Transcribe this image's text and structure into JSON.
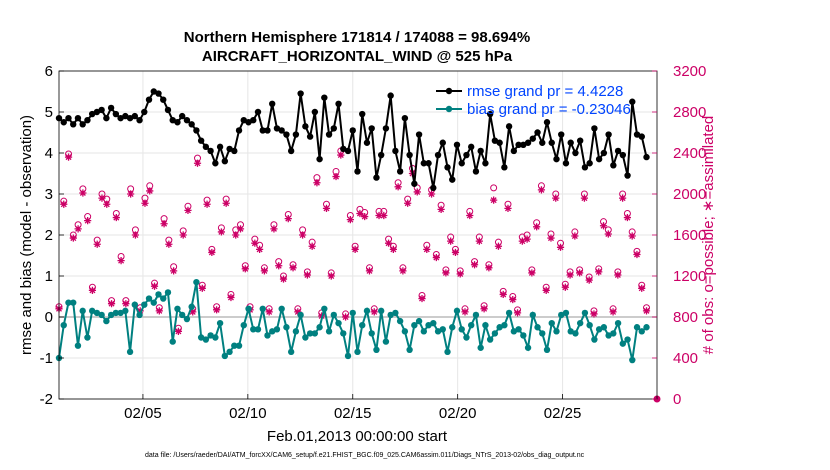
{
  "chart_data": {
    "type": "line",
    "title_line1": "Northern Hemisphere 171814 / 174088 = 98.694%",
    "title_line2": "AIRCRAFT_HORIZONTAL_WIND @ 525 hPa",
    "xlabel": "Feb.01,2013 00:00:00 start",
    "ylabel_left": "rmse and bias (model - observation)",
    "ylabel_right": "# of obs: o=possible; ∗=assimilated",
    "footnote": "data file: /Users/raeder/DAI/ATM_forcXX/CAM6_setup/f.e21.FHIST_BGC.f09_025.CAM6assim.011/Diags_NTrS_2013-02/obs_diag_output.nc",
    "xlim": [
      1,
      29.5
    ],
    "ylim_left": [
      -2,
      6
    ],
    "ylim_right": [
      0,
      3200
    ],
    "x_ticks": [
      5,
      10,
      15,
      20,
      25
    ],
    "x_tick_labels": [
      "02/05",
      "02/10",
      "02/15",
      "02/20",
      "02/25"
    ],
    "y_left_ticks": [
      "-2",
      "-1",
      "0",
      "1",
      "2",
      "3",
      "4",
      "5",
      "6"
    ],
    "y_right_ticks": [
      "0",
      "400",
      "800",
      "1200",
      "1600",
      "2000",
      "2400",
      "2800",
      "3200"
    ],
    "colors": {
      "rmse": "#000000",
      "bias": "#008080",
      "obs": "#cc0066",
      "zero": "#bbbbbb",
      "grid": "#e6e6e6",
      "legend_text": "#0044ff"
    },
    "legend": [
      {
        "label": "rmse grand pr = 4.4228",
        "series": "rmse"
      },
      {
        "label": "bias grand pr = -0.23046",
        "series": "bias"
      }
    ],
    "series": [
      {
        "name": "rmse",
        "axis": "left",
        "values": [
          4.85,
          4.75,
          4.85,
          4.7,
          4.85,
          4.7,
          4.8,
          4.95,
          5.0,
          5.05,
          4.85,
          5.1,
          4.95,
          4.85,
          4.9,
          4.85,
          4.9,
          4.8,
          5.0,
          5.3,
          5.5,
          5.45,
          5.3,
          5.05,
          4.8,
          4.75,
          4.9,
          4.8,
          4.7,
          4.55,
          4.3,
          4.15,
          4.05,
          3.75,
          4.15,
          3.8,
          4.1,
          4.05,
          4.55,
          4.8,
          4.75,
          4.8,
          5.0,
          4.55,
          4.55,
          5.2,
          4.6,
          4.55,
          4.45,
          4.05,
          4.45,
          5.45,
          4.65,
          4.4,
          5.0,
          3.85,
          5.35,
          4.45,
          4.6,
          5.2,
          4.1,
          4.05,
          4.55,
          3.55,
          4.95,
          4.25,
          4.6,
          3.4,
          3.95,
          4.6,
          5.4,
          4.05,
          3.55,
          4.85,
          3.95,
          3.25,
          4.45,
          3.75,
          3.75,
          3.15,
          3.95,
          4.25,
          3.65,
          3.35,
          4.2,
          3.75,
          3.95,
          4.15,
          3.55,
          4.05,
          3.75,
          4.95,
          4.3,
          4.25,
          3.65,
          4.65,
          4.05,
          4.2,
          4.2,
          4.25,
          4.35,
          4.5,
          4.25,
          4.75,
          4.25,
          3.85,
          4.45,
          3.75,
          4.25,
          4.0,
          4.3,
          3.65,
          3.75,
          4.6,
          3.85,
          4.0,
          4.45,
          3.7,
          4.05,
          3.95,
          3.45,
          5.25,
          4.45,
          4.4,
          3.9
        ]
      },
      {
        "name": "bias",
        "axis": "left",
        "values": [
          -1.0,
          -0.2,
          0.35,
          0.35,
          -0.7,
          0.15,
          -0.5,
          0.15,
          0.1,
          0.05,
          -0.1,
          0.05,
          0.1,
          0.1,
          0.15,
          -0.85,
          0.3,
          0.05,
          0.3,
          0.45,
          0.35,
          0.55,
          0.45,
          0.6,
          -0.6,
          0.2,
          0.05,
          -0.05,
          0.25,
          0.85,
          -0.5,
          -0.55,
          -0.45,
          -0.5,
          -0.15,
          -0.95,
          -0.85,
          -0.7,
          -0.7,
          -0.2,
          0.2,
          -0.3,
          -0.3,
          0.2,
          -0.45,
          -0.35,
          -0.3,
          0.2,
          -0.25,
          -0.85,
          -0.35,
          0.05,
          -0.5,
          -0.4,
          -0.4,
          -0.25,
          0.2,
          -0.35,
          0.05,
          -0.15,
          -0.4,
          -0.95,
          0.1,
          -0.85,
          -0.2,
          0.15,
          -0.4,
          -0.8,
          0.15,
          -0.6,
          0.05,
          0.1,
          -0.1,
          -0.35,
          -0.8,
          -0.2,
          -0.1,
          -0.35,
          -0.2,
          -0.15,
          -0.35,
          -0.3,
          -0.85,
          -0.25,
          0.15,
          -0.3,
          -0.5,
          -0.2,
          0.05,
          -0.75,
          -0.2,
          -0.55,
          -0.4,
          -0.25,
          -0.2,
          0.1,
          -0.35,
          -0.3,
          -0.45,
          -0.75,
          0.05,
          -0.25,
          -0.4,
          -0.8,
          -0.15,
          -0.35,
          0.05,
          0.1,
          -0.35,
          -0.4,
          -0.15,
          0.1,
          -0.2,
          -0.55,
          -0.3,
          -0.25,
          -0.45,
          -0.4,
          -0.15,
          -0.65,
          -0.55,
          -1.05,
          -0.25,
          -0.35,
          -0.25
        ]
      },
      {
        "name": "obs_possible",
        "axis": "right",
        "marker": "o",
        "values": [
          900,
          1930,
          2390,
          1600,
          1700,
          2050,
          1780,
          1090,
          1550,
          2000,
          1950,
          960,
          1810,
          1390,
          960,
          2050,
          1650,
          890,
          1960,
          2080,
          1130,
          890,
          1760,
          1550,
          1290,
          690,
          1640,
          1880,
          880,
          2350,
          1110,
          1940,
          1460,
          900,
          1670,
          1950,
          1020,
          1650,
          1700,
          1300,
          900,
          1560,
          1500,
          1280,
          880,
          1700,
          1340,
          1200,
          1800,
          1310,
          880,
          1650,
          1240,
          1530,
          2160,
          840,
          1900,
          1230,
          2220,
          2420,
          830,
          1790,
          1490,
          1850,
          1820,
          1280,
          880,
          1830,
          1830,
          1560,
          1490,
          2110,
          1280,
          1950,
          2250,
          2060,
          1010,
          1500,
          2040,
          1410,
          1890,
          1260,
          1580,
          1460,
          1250,
          880,
          1830,
          1340,
          1580,
          910,
          1310,
          2060,
          1530,
          1050,
          1900,
          1000,
          870,
          1580,
          1600,
          1260,
          1720,
          2080,
          1090,
          1610,
          2000,
          1520,
          1120,
          1240,
          1630,
          1260,
          2000,
          1190,
          860,
          1270,
          1730,
          1650,
          880,
          1240,
          2000,
          1810,
          1630,
          1440,
          1110,
          890
        ]
      },
      {
        "name": "obs_assimilated",
        "axis": "right",
        "marker": "*",
        "values": [
          880,
          1900,
          2360,
          1570,
          1660,
          2010,
          1740,
          1060,
          1510,
          1960,
          1900,
          930,
          1770,
          1350,
          930,
          2000,
          1600,
          860,
          1910,
          2030,
          1100,
          860,
          1710,
          1510,
          1250,
          660,
          1600,
          1840,
          850,
          2300,
          1080,
          1900,
          1430,
          870,
          1630,
          1910,
          990,
          1600,
          1660,
          1270,
          870,
          1520,
          1460,
          1250,
          850,
          1660,
          1300,
          1170,
          1760,
          1280,
          850,
          1600,
          1210,
          1490,
          2110,
          810,
          1860,
          1200,
          2170,
          2380,
          800,
          1750,
          1460,
          1810,
          1780,
          1250,
          850,
          1790,
          1790,
          1520,
          1460,
          2070,
          1250,
          1910,
          2200,
          2020,
          980,
          1460,
          2000,
          1380,
          1850,
          1230,
          1540,
          1430,
          1220,
          850,
          1790,
          1310,
          1540,
          880,
          1280,
          1940,
          1490,
          1020,
          1860,
          970,
          840,
          1540,
          1560,
          1230,
          1680,
          2040,
          1060,
          1570,
          1960,
          1480,
          1090,
          1210,
          1590,
          1230,
          1960,
          1160,
          830,
          1240,
          1690,
          1610,
          850,
          1210,
          1960,
          1770,
          1590,
          1410,
          1080,
          860
        ]
      }
    ]
  }
}
